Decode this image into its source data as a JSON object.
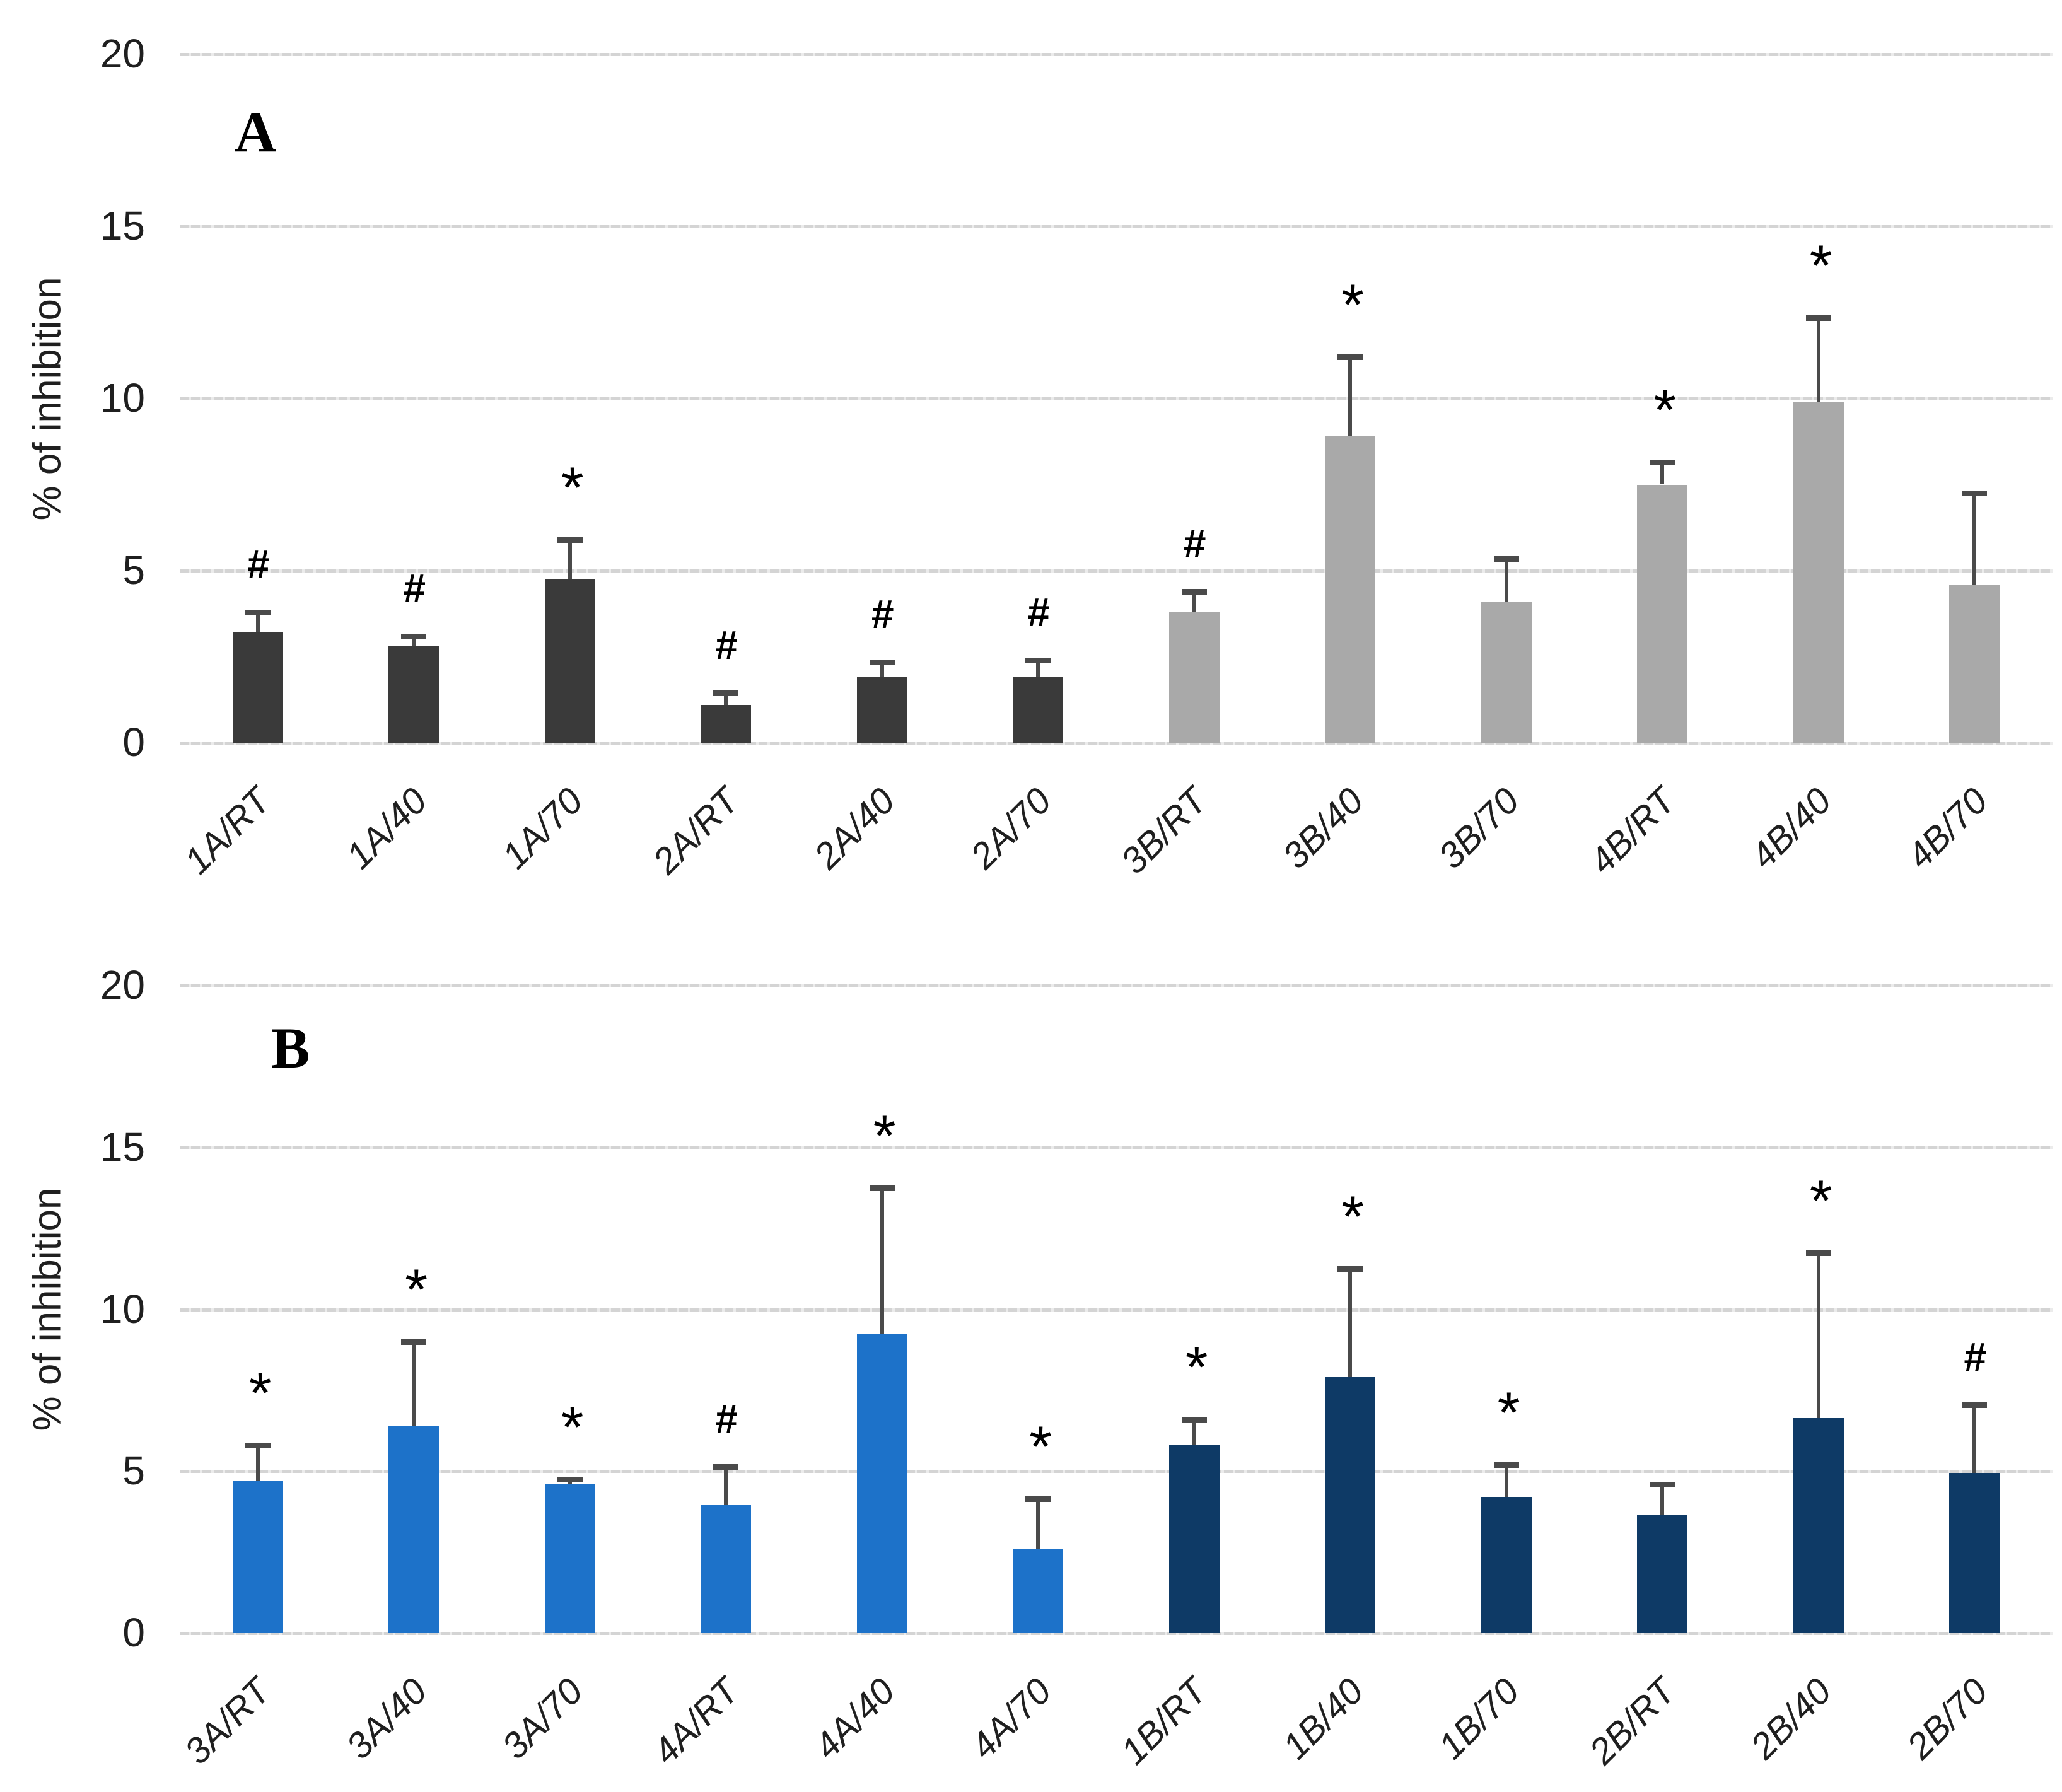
{
  "chart_data": [
    {
      "type": "bar",
      "panel_label": "A",
      "ylabel": "% of inhibition",
      "xlabel": "",
      "ylim": [
        0,
        20
      ],
      "yticks": [
        20,
        15,
        10,
        5,
        0
      ],
      "grid": true,
      "legend": null,
      "categories": [
        "1A/RT",
        "1A/40",
        "1A/70",
        "2A/RT",
        "2A/40",
        "2A/70",
        "3B/RT",
        "3B/40",
        "3B/70",
        "4B/RT",
        "4B/40",
        "4B/70"
      ],
      "series": [
        {
          "name": "% of inhibition",
          "values": [
            3.2,
            2.8,
            4.75,
            1.1,
            1.9,
            1.9,
            3.8,
            8.9,
            4.1,
            7.5,
            9.9,
            4.6
          ],
          "errors_plus": [
            0.6,
            0.3,
            1.15,
            0.35,
            0.45,
            0.5,
            0.6,
            2.3,
            1.25,
            0.65,
            2.45,
            2.65
          ],
          "significance": [
            "#",
            "#",
            "*",
            "#",
            "#",
            "#",
            "#",
            "*",
            "",
            "*",
            "*",
            ""
          ]
        }
      ],
      "bar_colors": [
        "#3a3a3a",
        "#3a3a3a",
        "#3a3a3a",
        "#3a3a3a",
        "#3a3a3a",
        "#3a3a3a",
        "#a9a9a9",
        "#a9a9a9",
        "#a9a9a9",
        "#a9a9a9",
        "#a9a9a9",
        "#a9a9a9"
      ]
    },
    {
      "type": "bar",
      "panel_label": "B",
      "ylabel": "% of inhibition",
      "xlabel": "",
      "ylim": [
        0,
        20
      ],
      "yticks": [
        20,
        15,
        10,
        5,
        0
      ],
      "grid": true,
      "legend": null,
      "categories": [
        "3A/RT",
        "3A/40",
        "3A/70",
        "4A/RT",
        "4A/40",
        "4A/70",
        "1B/RT",
        "1B/40",
        "1B/70",
        "2B/RT",
        "2B/40",
        "2B/70"
      ],
      "series": [
        {
          "name": "% of inhibition",
          "values": [
            4.7,
            6.4,
            4.6,
            3.95,
            9.25,
            2.6,
            5.8,
            7.9,
            4.2,
            3.65,
            6.65,
            4.95
          ],
          "errors_plus": [
            1.1,
            2.6,
            0.15,
            1.2,
            4.5,
            1.55,
            0.8,
            3.35,
            1.0,
            0.95,
            5.1,
            2.1
          ],
          "significance": [
            "*",
            "*",
            "*",
            "#",
            "*",
            "*",
            "*",
            "*",
            "*",
            "",
            "*",
            "#"
          ]
        }
      ],
      "bar_colors": [
        "#1d72c9",
        "#1d72c9",
        "#1d72c9",
        "#1d72c9",
        "#1d72c9",
        "#1d72c9",
        "#0e3a66",
        "#0e3a66",
        "#0e3a66",
        "#0e3a66",
        "#0e3a66",
        "#0e3a66"
      ]
    }
  ],
  "colors": {
    "dark_gray_bar": "#3a3a3a",
    "light_gray_bar": "#a9a9a9",
    "blue_bar": "#1d72c9",
    "navy_bar": "#0e3a66",
    "gridline": "#d4d4d4",
    "error_bar": "#4a4a4a"
  }
}
